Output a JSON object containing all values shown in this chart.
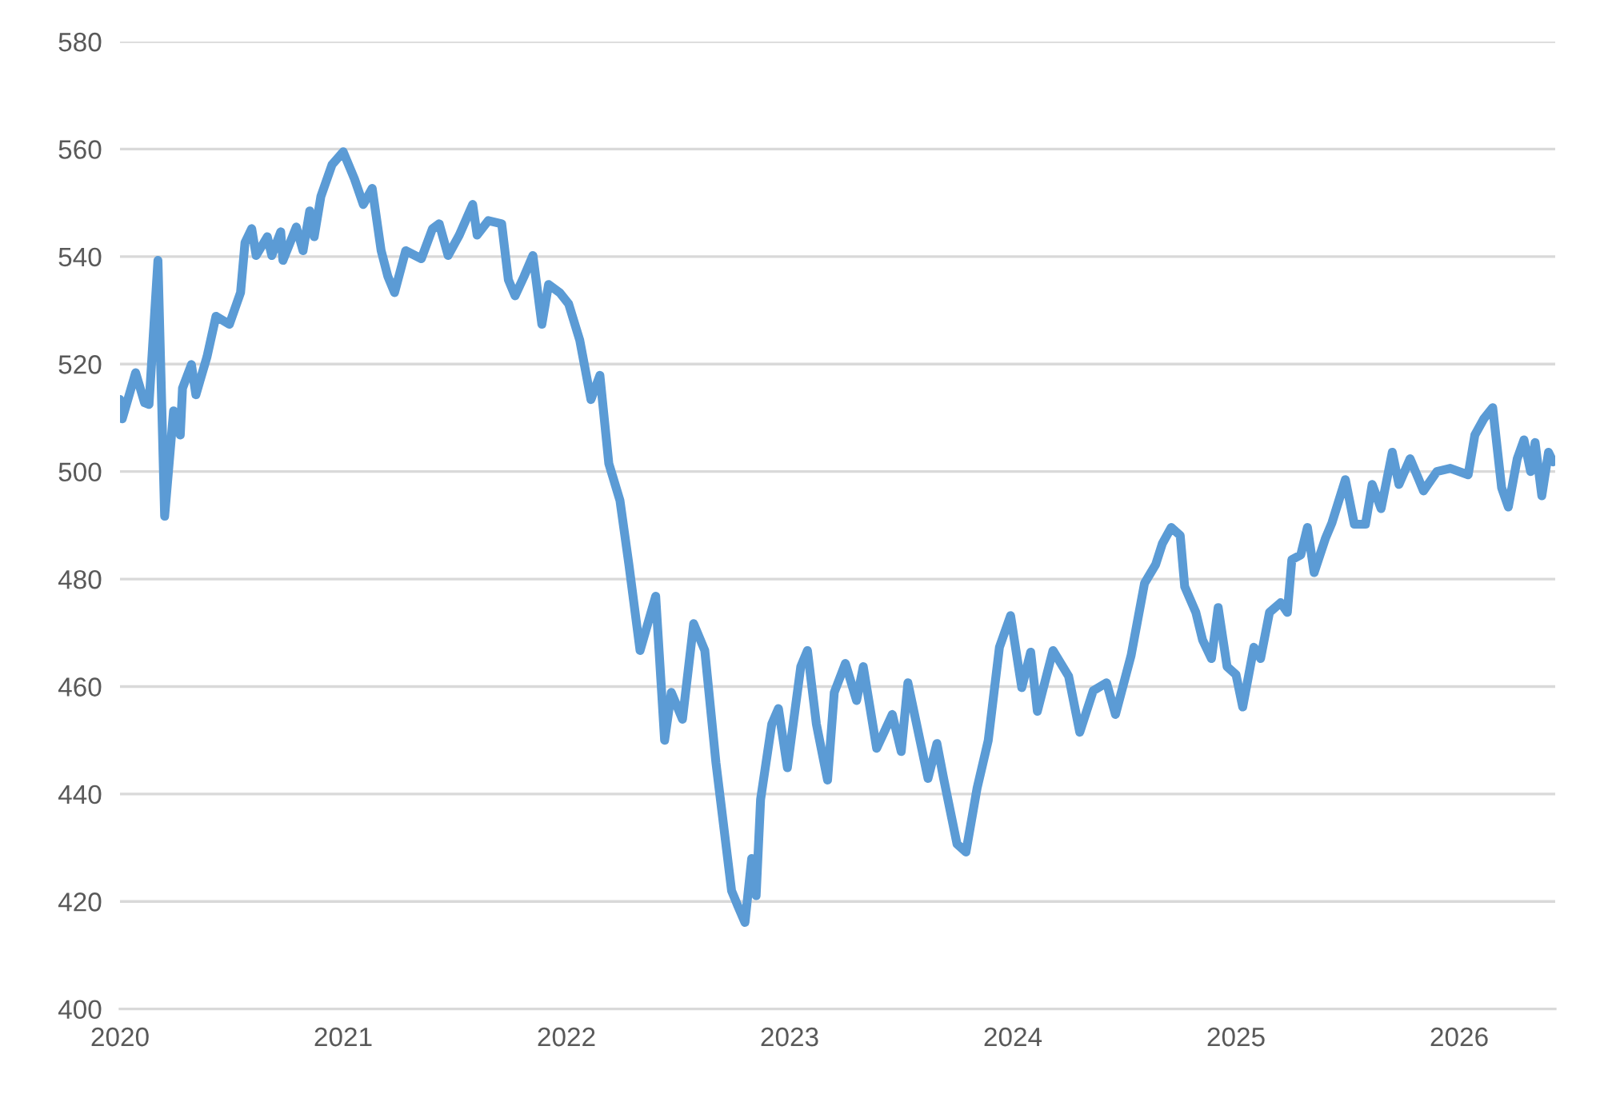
{
  "chart_data": {
    "type": "line",
    "x": [
      2020.0,
      2020.01,
      2020.07,
      2020.11,
      2020.13,
      2020.17,
      2020.2,
      2020.24,
      2020.27,
      2020.28,
      2020.32,
      2020.34,
      2020.39,
      2020.43,
      2020.49,
      2020.54,
      2020.56,
      2020.59,
      2020.61,
      2020.66,
      2020.68,
      2020.72,
      2020.73,
      2020.79,
      2020.82,
      2020.85,
      2020.87,
      2020.9,
      2020.95,
      2021.0,
      2021.05,
      2021.09,
      2021.13,
      2021.17,
      2021.2,
      2021.23,
      2021.28,
      2021.35,
      2021.4,
      2021.43,
      2021.47,
      2021.52,
      2021.58,
      2021.6,
      2021.65,
      2021.71,
      2021.74,
      2021.77,
      2021.81,
      2021.85,
      2021.89,
      2021.92,
      2021.97,
      2022.01,
      2022.06,
      2022.11,
      2022.15,
      2022.19,
      2022.24,
      2022.28,
      2022.33,
      2022.4,
      2022.44,
      2022.47,
      2022.52,
      2022.57,
      2022.62,
      2022.67,
      2022.74,
      2022.77,
      2022.8,
      2022.83,
      2022.85,
      2022.87,
      2022.92,
      2022.95,
      2022.99,
      2023.05,
      2023.08,
      2023.12,
      2023.17,
      2023.2,
      2023.25,
      2023.3,
      2023.33,
      2023.39,
      2023.46,
      2023.5,
      2023.53,
      2023.62,
      2023.66,
      2023.69,
      2023.75,
      2023.79,
      2023.84,
      2023.89,
      2023.94,
      2023.99,
      2024.04,
      2024.08,
      2024.11,
      2024.18,
      2024.25,
      2024.3,
      2024.36,
      2024.42,
      2024.46,
      2024.53,
      2024.59,
      2024.64,
      2024.67,
      2024.71,
      2024.75,
      2024.77,
      2024.82,
      2024.85,
      2024.89,
      2024.92,
      2024.96,
      2025.0,
      2025.03,
      2025.08,
      2025.11,
      2025.15,
      2025.2,
      2025.23,
      2025.25,
      2025.29,
      2025.32,
      2025.35,
      2025.4,
      2025.43,
      2025.49,
      2025.53,
      2025.58,
      2025.61,
      2025.65,
      2025.7,
      2025.73,
      2025.78,
      2025.84,
      2025.9,
      2025.96,
      2026.04,
      2026.07,
      2026.11,
      2026.15,
      2026.19,
      2026.22,
      2026.26,
      2026.29,
      2026.32,
      2026.34,
      2026.37,
      2026.4,
      2026.42
    ],
    "series": [
      {
        "color": "#5b9bd5",
        "values": [
          513.4,
          509.8,
          518.4,
          512.8,
          512.5,
          539.3,
          491.7,
          511.3,
          506.8,
          515.5,
          519.9,
          514.3,
          521.4,
          528.9,
          527.4,
          533.3,
          542.6,
          545.2,
          540.2,
          543.7,
          540.2,
          544.6,
          539.3,
          545.5,
          541.1,
          548.5,
          543.7,
          551.2,
          557.1,
          559.5,
          554.5,
          549.7,
          552.7,
          541.1,
          536.3,
          533.3,
          541.1,
          539.6,
          545.2,
          546.1,
          540.2,
          544.0,
          549.7,
          544.0,
          546.7,
          546.1,
          535.7,
          532.7,
          536.3,
          540.2,
          527.4,
          534.8,
          533.3,
          531.2,
          524.4,
          513.4,
          517.9,
          501.5,
          494.6,
          482.7,
          466.7,
          476.8,
          450.0,
          458.9,
          453.9,
          471.7,
          466.7,
          445.8,
          422.0,
          419.0,
          416.1,
          428.0,
          421.1,
          439.0,
          453.0,
          455.9,
          444.9,
          463.7,
          466.7,
          453.0,
          442.6,
          458.9,
          464.3,
          457.4,
          463.7,
          448.5,
          454.8,
          447.9,
          460.7,
          442.9,
          449.4,
          442.9,
          430.7,
          429.2,
          441.1,
          450.0,
          467.3,
          473.2,
          459.8,
          466.4,
          455.4,
          466.7,
          461.9,
          451.5,
          459.2,
          460.7,
          454.8,
          465.8,
          479.2,
          482.7,
          486.6,
          489.6,
          488.1,
          478.6,
          473.8,
          468.7,
          465.2,
          474.7,
          463.7,
          462.2,
          456.2,
          467.3,
          465.2,
          473.8,
          475.6,
          473.8,
          483.6,
          484.5,
          489.6,
          481.2,
          487.5,
          490.5,
          498.5,
          490.2,
          490.2,
          497.6,
          493.1,
          503.6,
          497.6,
          502.4,
          496.4,
          500.0,
          500.6,
          499.4,
          506.8,
          509.8,
          511.9,
          497.0,
          493.4,
          502.4,
          505.9,
          500.0,
          505.4,
          495.5,
          503.6,
          501.8
        ]
      }
    ],
    "xlim": [
      2020,
      2026.43
    ],
    "xticks": [
      2020,
      2021,
      2022,
      2023,
      2024,
      2025,
      2026
    ],
    "ylim": [
      400,
      580
    ],
    "yticks": [
      400,
      420,
      440,
      460,
      480,
      500,
      520,
      540,
      560,
      580
    ],
    "grid": "y",
    "marker": "none",
    "line_style": "solid"
  }
}
